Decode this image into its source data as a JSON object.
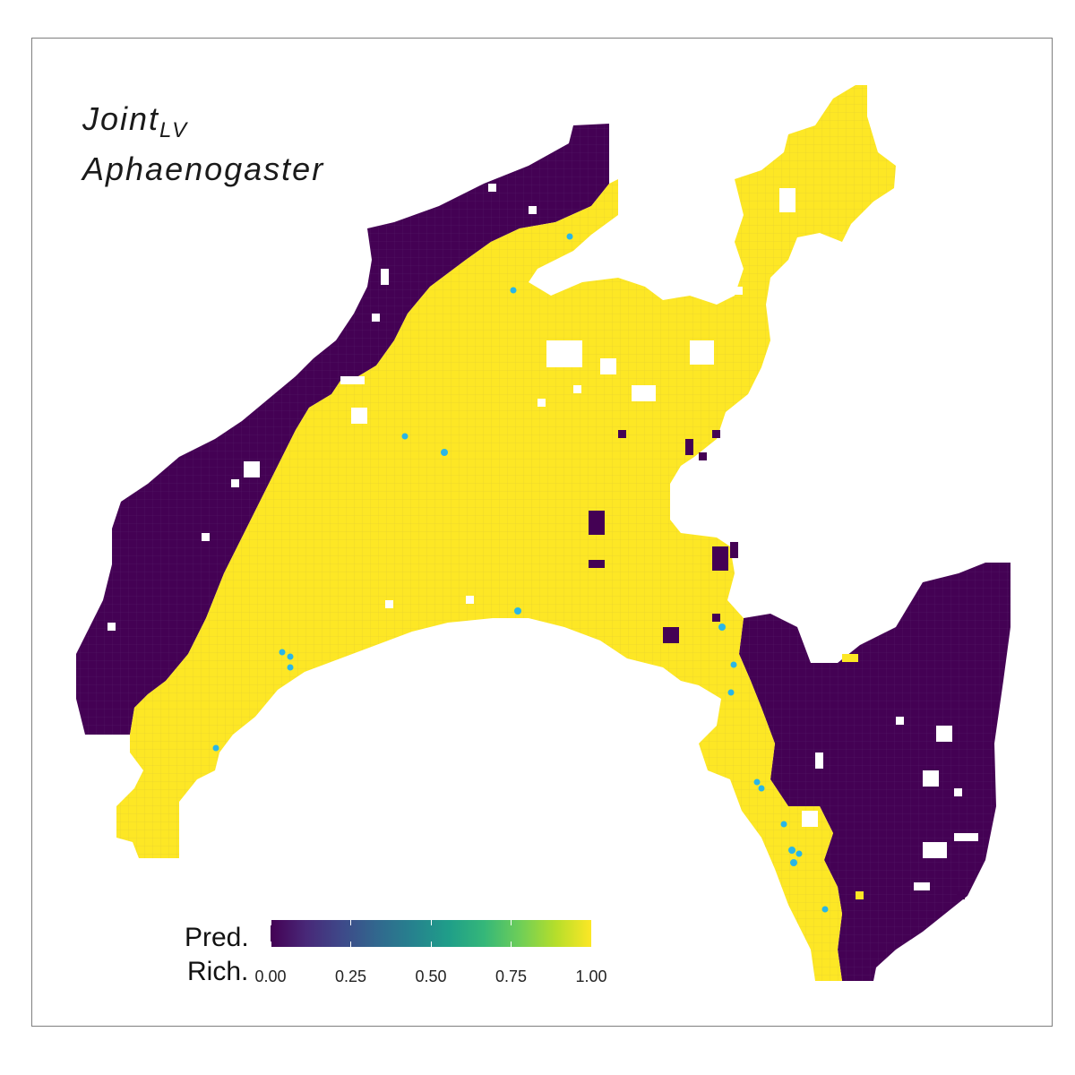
{
  "title": {
    "main": "Joint",
    "subscript": "LV",
    "taxon": "Aphaenogaster"
  },
  "legend": {
    "title_line1": "Pred.",
    "title_line2": "Rich.",
    "ticks": [
      "0.00",
      "0.25",
      "0.50",
      "0.75",
      "1.00"
    ],
    "tick_values": [
      0,
      0.25,
      0.5,
      0.75,
      1.0
    ],
    "range": [
      0,
      1
    ],
    "palette": "viridis"
  },
  "colors": {
    "low": "#440154",
    "high": "#fde725",
    "occurrence_point": "#29b6e6",
    "panel_border": "#7f7f7f"
  },
  "map_layers": {
    "predicted_high": "yellow region (predicted richness 1.00)",
    "predicted_low": "purple region (predicted richness 0.00)",
    "occurrences": "observed occurrence points"
  }
}
